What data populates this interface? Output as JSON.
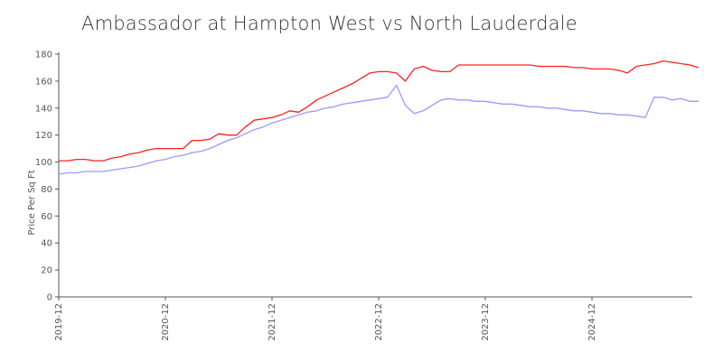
{
  "chart_data": {
    "type": "line",
    "title": "Ambassador at Hampton West vs North Lauderdale",
    "xlabel": "",
    "ylabel": "Price Per Sq Ft",
    "ylim": [
      0,
      180
    ],
    "yticks": [
      0,
      20,
      40,
      60,
      80,
      100,
      120,
      140,
      160,
      180
    ],
    "x_range": [
      "2019-12",
      "2025-09"
    ],
    "xticks": [
      "2019-12",
      "2020-12",
      "2021-12",
      "2022-12",
      "2023-12",
      "2024-12"
    ],
    "grid": false,
    "legend": "none",
    "series": [
      {
        "color": "#ff2020",
        "points": [
          [
            "2019-12",
            101
          ],
          [
            "2020-01",
            101
          ],
          [
            "2020-02",
            102
          ],
          [
            "2020-03",
            102
          ],
          [
            "2020-04",
            101
          ],
          [
            "2020-05",
            101
          ],
          [
            "2020-06",
            103
          ],
          [
            "2020-07",
            104
          ],
          [
            "2020-08",
            106
          ],
          [
            "2020-09",
            107
          ],
          [
            "2020-10",
            109
          ],
          [
            "2020-11",
            110
          ],
          [
            "2020-12",
            110
          ],
          [
            "2021-01",
            110
          ],
          [
            "2021-02",
            110
          ],
          [
            "2021-03",
            116
          ],
          [
            "2021-04",
            116
          ],
          [
            "2021-05",
            117
          ],
          [
            "2021-06",
            121
          ],
          [
            "2021-07",
            120
          ],
          [
            "2021-08",
            120
          ],
          [
            "2021-09",
            126
          ],
          [
            "2021-10",
            131
          ],
          [
            "2021-11",
            132
          ],
          [
            "2021-12",
            133
          ],
          [
            "2022-01",
            135
          ],
          [
            "2022-02",
            138
          ],
          [
            "2022-03",
            137
          ],
          [
            "2022-04",
            141
          ],
          [
            "2022-05",
            146
          ],
          [
            "2022-06",
            149
          ],
          [
            "2022-07",
            152
          ],
          [
            "2022-08",
            155
          ],
          [
            "2022-09",
            158
          ],
          [
            "2022-10",
            162
          ],
          [
            "2022-11",
            166
          ],
          [
            "2022-12",
            167
          ],
          [
            "2023-01",
            167
          ],
          [
            "2023-02",
            166
          ],
          [
            "2023-03",
            160
          ],
          [
            "2023-04",
            169
          ],
          [
            "2023-05",
            171
          ],
          [
            "2023-06",
            168
          ],
          [
            "2023-07",
            167
          ],
          [
            "2023-08",
            167
          ],
          [
            "2023-09",
            172
          ],
          [
            "2023-10",
            172
          ],
          [
            "2023-11",
            172
          ],
          [
            "2023-12",
            172
          ],
          [
            "2024-01",
            172
          ],
          [
            "2024-02",
            172
          ],
          [
            "2024-03",
            172
          ],
          [
            "2024-04",
            172
          ],
          [
            "2024-05",
            172
          ],
          [
            "2024-06",
            171
          ],
          [
            "2024-07",
            171
          ],
          [
            "2024-08",
            171
          ],
          [
            "2024-09",
            171
          ],
          [
            "2024-10",
            170
          ],
          [
            "2024-11",
            170
          ],
          [
            "2024-12",
            169
          ],
          [
            "2025-01",
            169
          ],
          [
            "2025-02",
            169
          ],
          [
            "2025-03",
            168
          ],
          [
            "2025-04",
            166
          ],
          [
            "2025-05",
            171
          ],
          [
            "2025-06",
            172
          ],
          [
            "2025-07",
            173
          ],
          [
            "2025-08",
            175
          ],
          [
            "2025-09",
            174
          ],
          [
            "2025-10",
            173
          ],
          [
            "2025-11",
            172
          ],
          [
            "2025-12",
            170
          ]
        ]
      },
      {
        "color": "#9a9aff",
        "points": [
          [
            "2019-12",
            91
          ],
          [
            "2020-01",
            92
          ],
          [
            "2020-02",
            92
          ],
          [
            "2020-03",
            93
          ],
          [
            "2020-04",
            93
          ],
          [
            "2020-05",
            93
          ],
          [
            "2020-06",
            94
          ],
          [
            "2020-07",
            95
          ],
          [
            "2020-08",
            96
          ],
          [
            "2020-09",
            97
          ],
          [
            "2020-10",
            99
          ],
          [
            "2020-11",
            101
          ],
          [
            "2020-12",
            102
          ],
          [
            "2021-01",
            104
          ],
          [
            "2021-02",
            105
          ],
          [
            "2021-03",
            107
          ],
          [
            "2021-04",
            108
          ],
          [
            "2021-05",
            110
          ],
          [
            "2021-06",
            113
          ],
          [
            "2021-07",
            116
          ],
          [
            "2021-08",
            118
          ],
          [
            "2021-09",
            121
          ],
          [
            "2021-10",
            124
          ],
          [
            "2021-11",
            126
          ],
          [
            "2021-12",
            129
          ],
          [
            "2022-01",
            131
          ],
          [
            "2022-02",
            133
          ],
          [
            "2022-03",
            135
          ],
          [
            "2022-04",
            137
          ],
          [
            "2022-05",
            138
          ],
          [
            "2022-06",
            140
          ],
          [
            "2022-07",
            141
          ],
          [
            "2022-08",
            143
          ],
          [
            "2022-09",
            144
          ],
          [
            "2022-10",
            145
          ],
          [
            "2022-11",
            146
          ],
          [
            "2022-12",
            147
          ],
          [
            "2023-01",
            148
          ],
          [
            "2023-02",
            157
          ],
          [
            "2023-03",
            142
          ],
          [
            "2023-04",
            136
          ],
          [
            "2023-05",
            138
          ],
          [
            "2023-06",
            142
          ],
          [
            "2023-07",
            146
          ],
          [
            "2023-08",
            147
          ],
          [
            "2023-09",
            146
          ],
          [
            "2023-10",
            146
          ],
          [
            "2023-11",
            145
          ],
          [
            "2023-12",
            145
          ],
          [
            "2024-01",
            144
          ],
          [
            "2024-02",
            143
          ],
          [
            "2024-03",
            143
          ],
          [
            "2024-04",
            142
          ],
          [
            "2024-05",
            141
          ],
          [
            "2024-06",
            141
          ],
          [
            "2024-07",
            140
          ],
          [
            "2024-08",
            140
          ],
          [
            "2024-09",
            139
          ],
          [
            "2024-10",
            138
          ],
          [
            "2024-11",
            138
          ],
          [
            "2024-12",
            137
          ],
          [
            "2025-01",
            136
          ],
          [
            "2025-02",
            136
          ],
          [
            "2025-03",
            135
          ],
          [
            "2025-04",
            135
          ],
          [
            "2025-05",
            134
          ],
          [
            "2025-06",
            133
          ],
          [
            "2025-07",
            148
          ],
          [
            "2025-08",
            148
          ],
          [
            "2025-09",
            146
          ],
          [
            "2025-10",
            147
          ],
          [
            "2025-11",
            145
          ],
          [
            "2025-12",
            145
          ]
        ]
      }
    ]
  }
}
